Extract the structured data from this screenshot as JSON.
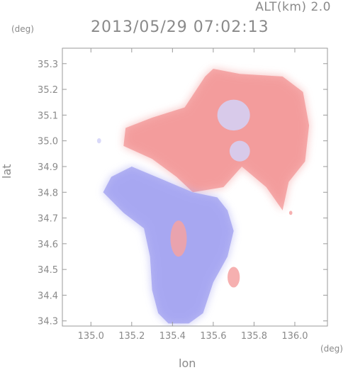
{
  "header": {
    "alt_label": "ALT(km) 2.0",
    "timestamp": "2013/05/29 07:02:13"
  },
  "chart_data": {
    "type": "heatmap",
    "title": "2013/05/29 07:02:13",
    "xlabel": "lon",
    "ylabel": "lat",
    "x_unit": "(deg)",
    "y_unit": "(deg)",
    "xlim": [
      134.86,
      136.16
    ],
    "ylim": [
      34.28,
      35.36
    ],
    "x_ticks": [
      135.0,
      135.2,
      135.4,
      135.6,
      135.8,
      136.0
    ],
    "x_tick_labels": [
      "135.0",
      "135.2",
      "135.4",
      "135.6",
      "135.8",
      "136.0"
    ],
    "y_ticks": [
      34.3,
      34.4,
      34.5,
      34.6,
      34.7,
      34.8,
      34.9,
      35.0,
      35.1,
      35.2,
      35.3
    ],
    "y_tick_labels": [
      "34.3",
      "34.4",
      "34.5",
      "34.6",
      "34.7",
      "34.8",
      "34.9",
      "35.0",
      "35.1",
      "35.2",
      "35.3"
    ],
    "grid": false,
    "colors": {
      "positive": "#f08080",
      "negative": "#8c8cf0",
      "axis": "#9a9a9a"
    },
    "regions": [
      {
        "name": "positive",
        "polygon": [
          [
            135.6,
            35.28
          ],
          [
            135.73,
            35.26
          ],
          [
            135.94,
            35.25
          ],
          [
            136.04,
            35.19
          ],
          [
            136.07,
            35.06
          ],
          [
            136.05,
            34.92
          ],
          [
            135.97,
            34.84
          ],
          [
            135.94,
            34.73
          ],
          [
            135.86,
            34.82
          ],
          [
            135.74,
            34.9
          ],
          [
            135.65,
            34.82
          ],
          [
            135.5,
            34.8
          ],
          [
            135.42,
            34.86
          ],
          [
            135.3,
            34.93
          ],
          [
            135.16,
            34.98
          ],
          [
            135.17,
            35.05
          ],
          [
            135.3,
            35.09
          ],
          [
            135.46,
            35.13
          ],
          [
            135.56,
            35.25
          ]
        ]
      },
      {
        "name": "negative",
        "polygon": [
          [
            135.5,
            34.8
          ],
          [
            135.38,
            34.84
          ],
          [
            135.2,
            34.9
          ],
          [
            135.1,
            34.86
          ],
          [
            135.06,
            34.8
          ],
          [
            135.16,
            34.72
          ],
          [
            135.26,
            34.66
          ],
          [
            135.29,
            34.55
          ],
          [
            135.3,
            34.42
          ],
          [
            135.33,
            34.33
          ],
          [
            135.38,
            34.29
          ],
          [
            135.48,
            34.29
          ],
          [
            135.55,
            34.33
          ],
          [
            135.6,
            34.45
          ],
          [
            135.67,
            34.55
          ],
          [
            135.7,
            34.65
          ],
          [
            135.67,
            34.73
          ],
          [
            135.62,
            34.78
          ]
        ]
      }
    ],
    "patches": [
      {
        "sign": "negative",
        "center": [
          135.7,
          35.1
        ],
        "radius": [
          0.08,
          0.06
        ]
      },
      {
        "sign": "negative",
        "center": [
          135.73,
          34.96
        ],
        "radius": [
          0.05,
          0.04
        ]
      },
      {
        "sign": "positive",
        "center": [
          135.43,
          34.62
        ],
        "radius": [
          0.04,
          0.07
        ]
      },
      {
        "sign": "positive",
        "center": [
          135.7,
          34.47
        ],
        "radius": [
          0.03,
          0.04
        ]
      },
      {
        "sign": "negative",
        "center": [
          135.04,
          35.0
        ],
        "radius": [
          0.01,
          0.01
        ]
      },
      {
        "sign": "positive",
        "center": [
          135.98,
          34.72
        ],
        "radius": [
          0.008,
          0.008
        ]
      }
    ]
  }
}
